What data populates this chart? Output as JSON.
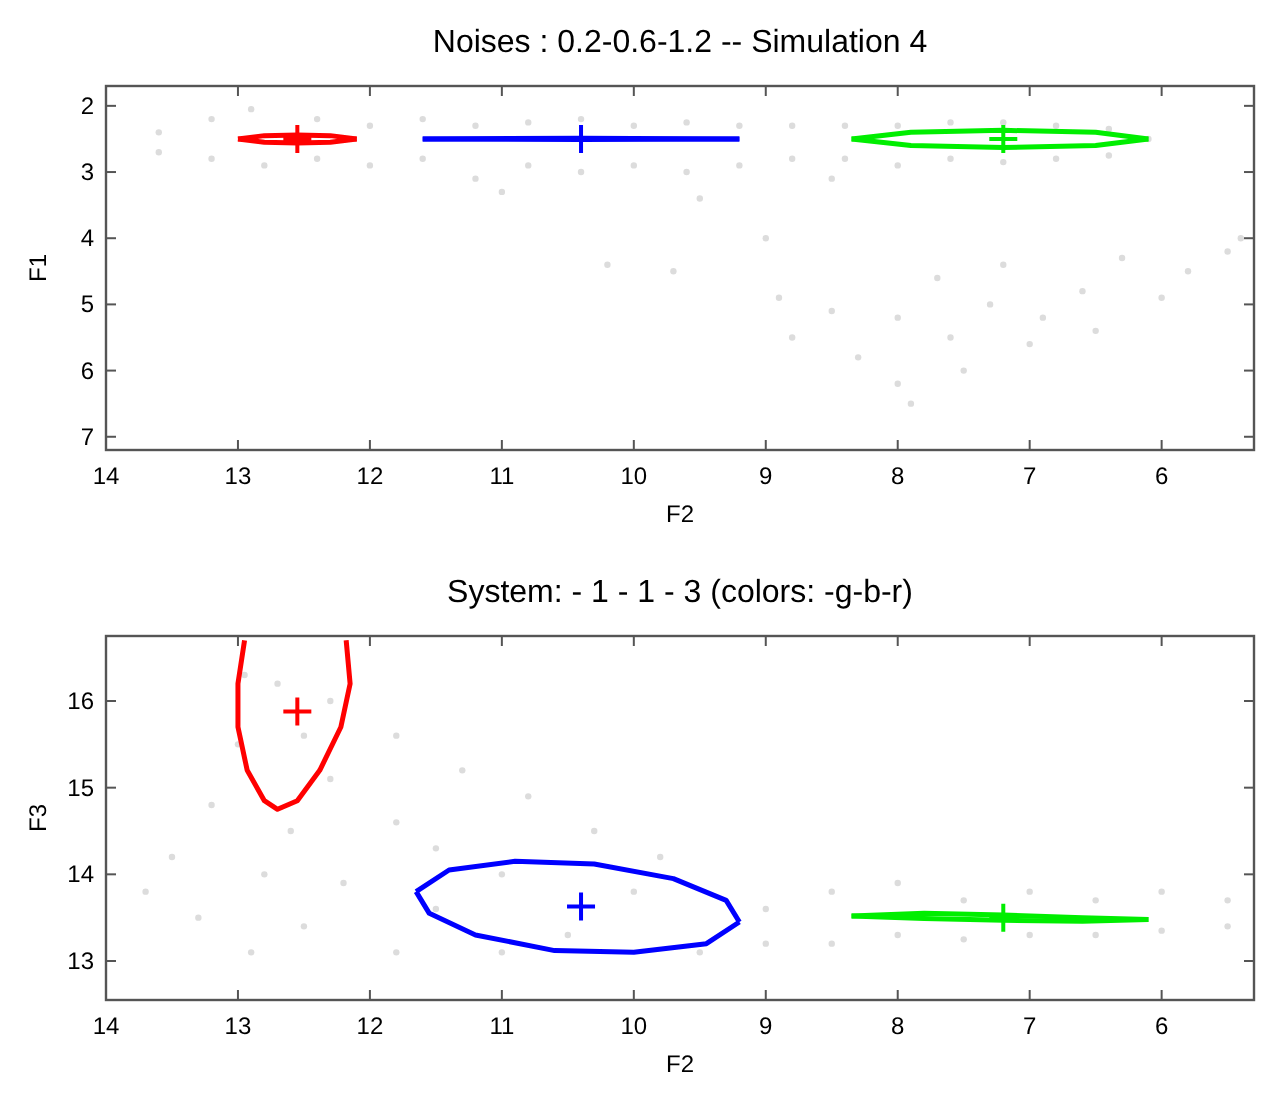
{
  "chart_data": [
    {
      "type": "scatter",
      "title": "Noises : 0.2-0.6-1.2 -- Simulation 4",
      "xlabel": "F2",
      "ylabel": "F1",
      "xlim": [
        14,
        5.3
      ],
      "xticks": [
        14,
        13,
        12,
        11,
        10,
        9,
        8,
        7,
        6
      ],
      "ylim": [
        7.2,
        1.7
      ],
      "yticks": [
        2,
        3,
        4,
        5,
        6,
        7
      ],
      "grid": false,
      "series": [
        {
          "type": "scatter",
          "marker": "circle",
          "color": "#dcdcdc",
          "x": [
            13.6,
            13.6,
            13.2,
            13.2,
            12.9,
            12.8,
            12.4,
            12.4,
            12,
            12,
            11.6,
            11.6,
            11.2,
            11.2,
            10.8,
            10.8,
            10.4,
            10.4,
            10,
            10,
            9.6,
            9.6,
            9.2,
            9.2,
            8.8,
            8.8,
            8.4,
            8.4,
            8,
            8,
            7.6,
            7.6,
            7.2,
            7.2,
            6.8,
            6.8,
            6.4,
            6.4,
            6.1,
            11,
            9.5,
            8.5,
            9,
            8.9,
            8.8,
            8.5,
            8.3,
            8,
            8,
            7.9,
            7.7,
            7.6,
            7.5,
            7.3,
            7.2,
            7,
            6.9,
            6.6,
            6.5,
            6.3,
            6,
            5.8,
            5.5,
            5.4,
            10.2,
            9.7
          ],
          "values": [
            2.4,
            2.7,
            2.2,
            2.8,
            2.05,
            2.9,
            2.2,
            2.8,
            2.3,
            2.9,
            2.2,
            2.8,
            2.3,
            3.1,
            2.25,
            2.9,
            2.2,
            3,
            2.3,
            2.9,
            2.25,
            3,
            2.3,
            2.9,
            2.3,
            2.8,
            2.3,
            2.8,
            2.3,
            2.9,
            2.25,
            2.8,
            2.25,
            2.85,
            2.3,
            2.8,
            2.35,
            2.75,
            2.5,
            3.3,
            3.4,
            3.1,
            4,
            4.9,
            5.5,
            5.1,
            5.8,
            5.2,
            6.2,
            6.5,
            4.6,
            5.5,
            6,
            5,
            4.4,
            5.6,
            5.2,
            4.8,
            5.4,
            4.3,
            4.9,
            4.5,
            4.2,
            4,
            4.4,
            4.5
          ]
        },
        {
          "type": "line",
          "marker": "none",
          "color": "#ff0000",
          "x": [
            13,
            12.8,
            12.55,
            12.3,
            12.1
          ],
          "values": [
            2.5,
            2.45,
            2.44,
            2.45,
            2.5
          ]
        },
        {
          "type": "line",
          "marker": "none",
          "color": "#ff0000",
          "x": [
            13,
            12.8,
            12.55,
            12.3,
            12.1
          ],
          "values": [
            2.5,
            2.55,
            2.56,
            2.55,
            2.5
          ]
        },
        {
          "type": "line",
          "marker": "none",
          "color": "#0000ff",
          "x": [
            11.6,
            10.4,
            9.2
          ],
          "values": [
            2.5,
            2.49,
            2.5
          ]
        },
        {
          "type": "line",
          "marker": "none",
          "color": "#0000ff",
          "x": [
            11.6,
            10.4,
            9.2
          ],
          "values": [
            2.5,
            2.51,
            2.5
          ]
        },
        {
          "type": "line",
          "marker": "none",
          "color": "#00ee00",
          "x": [
            8.35,
            7.9,
            7.2,
            6.5,
            6.1
          ],
          "values": [
            2.5,
            2.4,
            2.37,
            2.4,
            2.5
          ]
        },
        {
          "type": "line",
          "marker": "none",
          "color": "#00ee00",
          "x": [
            8.35,
            7.9,
            7.2,
            6.5,
            6.1
          ],
          "values": [
            2.5,
            2.6,
            2.63,
            2.6,
            2.5
          ]
        },
        {
          "type": "scatter",
          "marker": "cross",
          "color": "#ff0000",
          "x": [
            12.55
          ],
          "values": [
            2.5
          ]
        },
        {
          "type": "scatter",
          "marker": "cross",
          "color": "#0000ff",
          "x": [
            10.4
          ],
          "values": [
            2.5
          ]
        },
        {
          "type": "scatter",
          "marker": "cross",
          "color": "#00ee00",
          "x": [
            7.2
          ],
          "values": [
            2.5
          ]
        }
      ]
    },
    {
      "type": "scatter",
      "title": "System: - 1 - 1 - 3  (colors: -g-b-r)",
      "xlabel": "F2",
      "ylabel": "F3",
      "xlim": [
        14,
        5.3
      ],
      "xticks": [
        14,
        13,
        12,
        11,
        10,
        9,
        8,
        7,
        6
      ],
      "ylim": [
        12.55,
        16.75
      ],
      "yticks": [
        13,
        14,
        15,
        16
      ],
      "grid": false,
      "series": [
        {
          "type": "scatter",
          "marker": "circle",
          "color": "#dcdcdc",
          "x": [
            13.7,
            13.5,
            13.3,
            13.2,
            13,
            12.95,
            12.7,
            12.5,
            12.3,
            12.3,
            11.8,
            11.3,
            10.8,
            10.3,
            11.8,
            11.5,
            12.8,
            12.9,
            12.5,
            12.2,
            11.8,
            11.5,
            11,
            10.5,
            10,
            9.5,
            9,
            9,
            8.5,
            8.5,
            8,
            8,
            7.5,
            7.5,
            7,
            7,
            6.5,
            6.5,
            6,
            6,
            5.5,
            5.5,
            12.6,
            11,
            9.8
          ],
          "values": [
            13.8,
            14.2,
            13.5,
            14.8,
            15.5,
            16.3,
            16.2,
            15.6,
            15.1,
            16,
            15.6,
            15.2,
            14.9,
            14.5,
            14.6,
            14.3,
            14,
            13.1,
            13.4,
            13.9,
            13.1,
            13.6,
            13.1,
            13.3,
            13.8,
            13.1,
            13.2,
            13.6,
            13.2,
            13.8,
            13.3,
            13.9,
            13.25,
            13.7,
            13.3,
            13.8,
            13.3,
            13.7,
            13.35,
            13.8,
            13.4,
            13.7,
            14.5,
            14,
            14.2
          ]
        },
        {
          "type": "line",
          "marker": "none",
          "color": "#ff0000",
          "x": [
            12.95,
            13,
            13,
            12.93,
            12.8,
            12.7,
            12.55,
            12.38,
            12.22,
            12.15,
            12.18
          ],
          "values": [
            16.7,
            16.2,
            15.7,
            15.2,
            14.85,
            14.75,
            14.85,
            15.2,
            15.7,
            16.2,
            16.7
          ]
        },
        {
          "type": "line",
          "marker": "none",
          "color": "#0000ff",
          "x": [
            11.65,
            11.4,
            10.9,
            10.3,
            9.7,
            9.3,
            9.2
          ],
          "values": [
            13.8,
            14.05,
            14.15,
            14.12,
            13.95,
            13.7,
            13.45
          ]
        },
        {
          "type": "line",
          "marker": "none",
          "color": "#0000ff",
          "x": [
            11.65,
            11.55,
            11.2,
            10.6,
            10,
            9.45,
            9.2
          ],
          "values": [
            13.8,
            13.55,
            13.3,
            13.12,
            13.1,
            13.2,
            13.45
          ]
        },
        {
          "type": "line",
          "marker": "none",
          "color": "#00ee00",
          "x": [
            8.35,
            7.8,
            7.2,
            6.6,
            6.1
          ],
          "values": [
            13.52,
            13.55,
            13.53,
            13.5,
            13.48
          ]
        },
        {
          "type": "line",
          "marker": "none",
          "color": "#00ee00",
          "x": [
            8.35,
            7.8,
            7.2,
            6.6,
            6.1
          ],
          "values": [
            13.52,
            13.49,
            13.47,
            13.46,
            13.48
          ]
        },
        {
          "type": "scatter",
          "marker": "cross",
          "color": "#ff0000",
          "x": [
            12.55
          ],
          "values": [
            15.88
          ]
        },
        {
          "type": "scatter",
          "marker": "cross",
          "color": "#0000ff",
          "x": [
            10.4
          ],
          "values": [
            13.63
          ]
        },
        {
          "type": "scatter",
          "marker": "cross",
          "color": "#00ee00",
          "x": [
            7.2
          ],
          "values": [
            13.5
          ]
        }
      ]
    }
  ]
}
